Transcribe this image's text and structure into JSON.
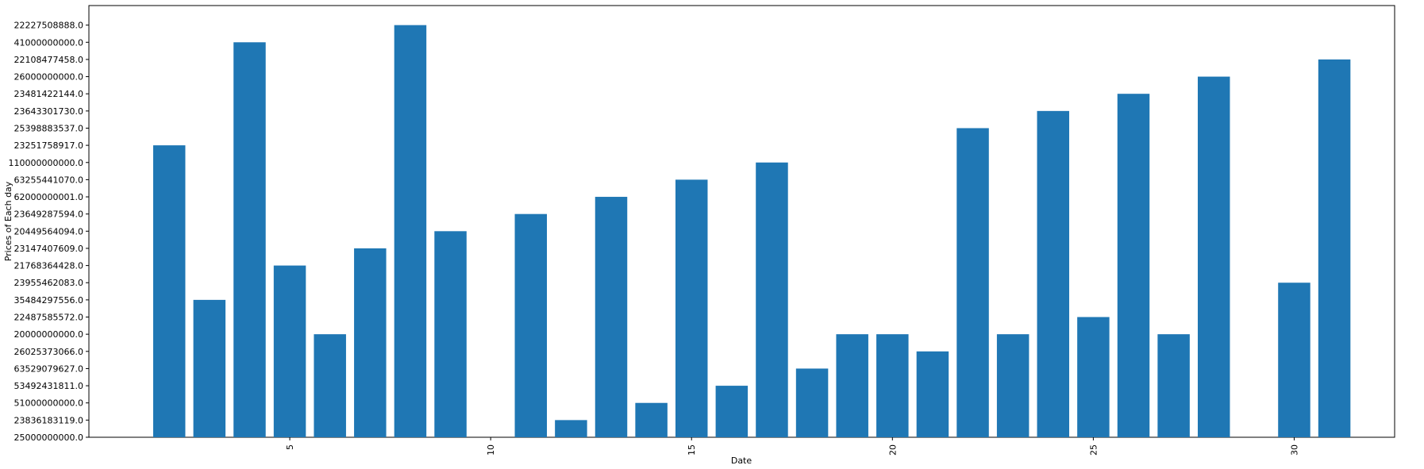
{
  "chart_data": {
    "type": "bar",
    "title": "",
    "xlabel": "Date",
    "ylabel": "Prices of Each day",
    "bar_color": "#1f77b4",
    "grid": false,
    "legend": "none",
    "xlim": [
      0,
      32.5
    ],
    "x_ticks": [
      5,
      10,
      15,
      20,
      25,
      30
    ],
    "x_tick_labels": [
      "5",
      "10",
      "15",
      "20",
      "25",
      "30"
    ],
    "y_categories": [
      "25000000000.0",
      "23836183119.0",
      "51000000000.0",
      "53492431811.0",
      "63529079627.0",
      "26025373066.0",
      "20000000000.0",
      "22487585572.0",
      "35484297556.0",
      "23955462083.0",
      "21768364428.0",
      "23147407609.0",
      "20449564094.0",
      "23649287594.0",
      "62000000001.0",
      "63255441070.0",
      "110000000000.0",
      "23251758917.0",
      "25398883537.0",
      "23643301730.0",
      "23481422144.0",
      "26000000000.0",
      "22108477458.0",
      "41000000000.0",
      "22227508888.0"
    ],
    "bars": [
      {
        "x": 2,
        "y": "23251758917.0"
      },
      {
        "x": 3,
        "y": "35484297556.0"
      },
      {
        "x": 4,
        "y": "41000000000.0"
      },
      {
        "x": 5,
        "y": "21768364428.0"
      },
      {
        "x": 6,
        "y": "20000000000.0"
      },
      {
        "x": 7,
        "y": "23147407609.0"
      },
      {
        "x": 8,
        "y": "22227508888.0"
      },
      {
        "x": 9,
        "y": "20449564094.0"
      },
      {
        "x": 10,
        "y": "25000000000.0"
      },
      {
        "x": 11,
        "y": "23649287594.0"
      },
      {
        "x": 12,
        "y": "23836183119.0"
      },
      {
        "x": 13,
        "y": "62000000001.0"
      },
      {
        "x": 14,
        "y": "51000000000.0"
      },
      {
        "x": 15,
        "y": "63255441070.0"
      },
      {
        "x": 16,
        "y": "53492431811.0"
      },
      {
        "x": 17,
        "y": "110000000000.0"
      },
      {
        "x": 18,
        "y": "63529079627.0"
      },
      {
        "x": 19,
        "y": "20000000000.0"
      },
      {
        "x": 20,
        "y": "20000000000.0"
      },
      {
        "x": 21,
        "y": "26025373066.0"
      },
      {
        "x": 22,
        "y": "25398883537.0"
      },
      {
        "x": 23,
        "y": "20000000000.0"
      },
      {
        "x": 24,
        "y": "23643301730.0"
      },
      {
        "x": 25,
        "y": "22487585572.0"
      },
      {
        "x": 26,
        "y": "23481422144.0"
      },
      {
        "x": 27,
        "y": "20000000000.0"
      },
      {
        "x": 28,
        "y": "26000000000.0"
      },
      {
        "x": 30,
        "y": "23955462083.0"
      },
      {
        "x": 31,
        "y": "22108477458.0"
      }
    ]
  }
}
